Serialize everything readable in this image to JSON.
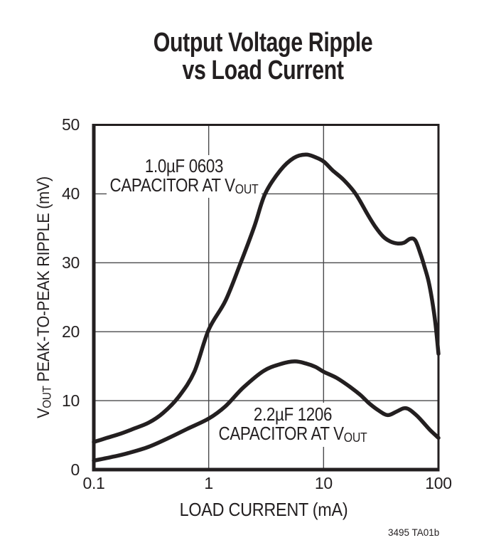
{
  "title": {
    "line1": "Output Voltage Ripple",
    "line2": "vs Load Current"
  },
  "footnote": "3495 TA01b",
  "chart_data": {
    "type": "line",
    "title": "Output Voltage Ripple vs Load Current",
    "color": "#231f20",
    "grid": true,
    "grid_color": "#4a4a4c",
    "legend_position": "inline-annotations",
    "x_axis": {
      "label": "LOAD CURRENT (mA)",
      "scale": "log",
      "min": 0.1,
      "max": 100,
      "ticks": [
        0.1,
        1,
        10,
        100
      ],
      "tick_labels": [
        "0.1",
        "1",
        "10",
        "100"
      ]
    },
    "y_axis": {
      "label_pre": "V",
      "label_sub": "OUT",
      "label_rest": " PEAK-TO-PEAK RIPPLE (mV)",
      "label_full": "VOUT PEAK-TO-PEAK RIPPLE (mV)",
      "scale": "linear",
      "min": 0,
      "max": 50,
      "ticks": [
        0,
        10,
        20,
        30,
        40,
        50
      ],
      "tick_labels": [
        "0",
        "10",
        "20",
        "30",
        "40",
        "50"
      ]
    },
    "series": [
      {
        "name": "1.0µF 0603 CAPACITOR AT VOUT",
        "annotation": {
          "line1": "1.0µF 0603",
          "line2_pre": "CAPACITOR AT V",
          "line2_sub": "OUT"
        },
        "points": [
          [
            0.1,
            4.0
          ],
          [
            0.13,
            4.6
          ],
          [
            0.17,
            5.2
          ],
          [
            0.22,
            5.9
          ],
          [
            0.3,
            6.8
          ],
          [
            0.4,
            8.2
          ],
          [
            0.55,
            10.6
          ],
          [
            0.75,
            14.2
          ],
          [
            1.0,
            20.3
          ],
          [
            1.4,
            24.5
          ],
          [
            1.9,
            30.0
          ],
          [
            2.5,
            35.3
          ],
          [
            3.1,
            40.0
          ],
          [
            4.2,
            43.4
          ],
          [
            5.5,
            45.2
          ],
          [
            7.0,
            45.7
          ],
          [
            8.5,
            45.3
          ],
          [
            10,
            44.7
          ],
          [
            12,
            43.4
          ],
          [
            15,
            42.0
          ],
          [
            19,
            40.0
          ],
          [
            24,
            37.1
          ],
          [
            28,
            35.3
          ],
          [
            33,
            33.8
          ],
          [
            38,
            33.1
          ],
          [
            44,
            32.8
          ],
          [
            50,
            32.9
          ],
          [
            57,
            33.5
          ],
          [
            63,
            33.2
          ],
          [
            70,
            31.2
          ],
          [
            76,
            29.3
          ],
          [
            82,
            27.3
          ],
          [
            88,
            24.6
          ],
          [
            94,
            21.2
          ],
          [
            100,
            16.8
          ]
        ]
      },
      {
        "name": "2.2µF 1206 CAPACITOR AT VOUT",
        "annotation": {
          "line1": "2.2µF 1206",
          "line2_pre": "CAPACITOR AT V",
          "line2_sub": "OUT"
        },
        "points": [
          [
            0.1,
            1.3
          ],
          [
            0.15,
            1.9
          ],
          [
            0.2,
            2.4
          ],
          [
            0.3,
            3.3
          ],
          [
            0.45,
            4.6
          ],
          [
            0.65,
            5.9
          ],
          [
            1.0,
            7.4
          ],
          [
            1.4,
            9.2
          ],
          [
            2.0,
            11.9
          ],
          [
            3.0,
            14.3
          ],
          [
            4.2,
            15.3
          ],
          [
            5.6,
            15.7
          ],
          [
            7.0,
            15.4
          ],
          [
            8.5,
            14.9
          ],
          [
            10,
            14.2
          ],
          [
            13,
            13.3
          ],
          [
            17,
            12.0
          ],
          [
            21,
            10.8
          ],
          [
            25,
            9.6
          ],
          [
            30,
            8.6
          ],
          [
            36,
            7.9
          ],
          [
            43,
            8.4
          ],
          [
            50,
            8.9
          ],
          [
            56,
            8.7
          ],
          [
            65,
            7.8
          ],
          [
            75,
            6.7
          ],
          [
            85,
            5.7
          ],
          [
            100,
            4.6
          ]
        ]
      }
    ]
  }
}
